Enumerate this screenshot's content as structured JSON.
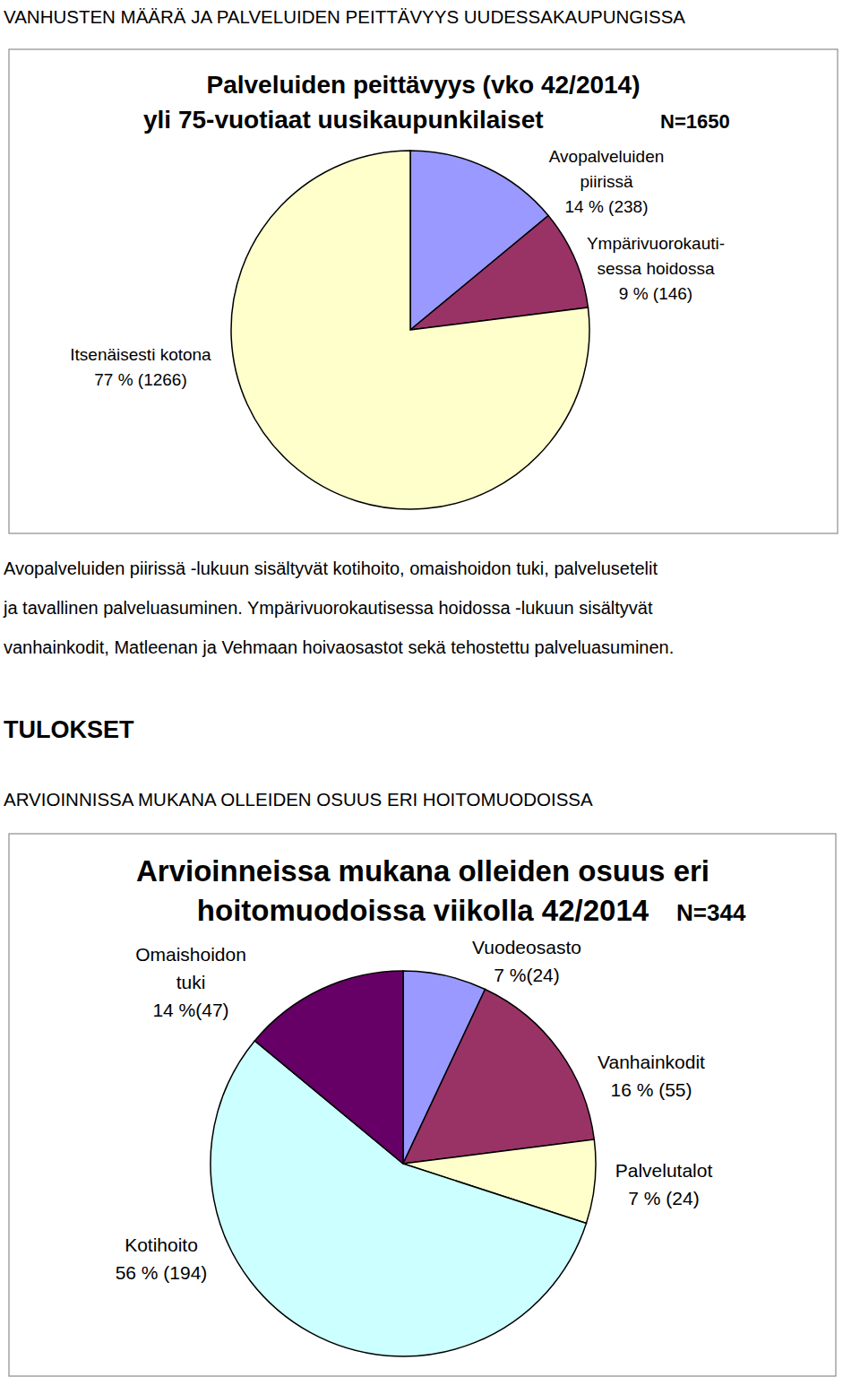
{
  "page": {
    "heading": "VANHUSTEN MÄÄRÄ JA PALVELUIDEN PEITTÄVYYS UUDESSAKAUPUNGISSA",
    "caption": [
      "Avopalveluiden piirissä -lukuun sisältyvät kotihoito, omaishoidon tuki, palvelusetelit",
      "ja tavallinen palveluasuminen. Ympärivuorokautisessa hoidossa -lukuun sisältyvät",
      "vanhainkodit, Matleenan ja Vehmaan hoivaosastot sekä tehostettu palveluasuminen."
    ],
    "results_heading": "TULOKSET",
    "results_subheading": "ARVIOINNISSA MUKANA OLLEIDEN OSUUS ERI HOITOMUODOISSA"
  },
  "chart_data": [
    {
      "type": "pie",
      "title": "Palveluiden peittävyys (vko 42/2014)",
      "subtitle": "yli 75-vuotiaat uusikaupunkilaiset",
      "annotations": [
        "N=1650"
      ],
      "categories": [
        "Avopalveluiden\npiirissä",
        "Ympärivuorokauti-\nsessa hoidossa",
        "Itsenäisesti kotona"
      ],
      "values": [
        14,
        9,
        77
      ],
      "value_labels": [
        "14 % (238)",
        "9 % (146)",
        "77 % (1266)"
      ],
      "colors": [
        "#9999ff",
        "#993366",
        "#ffffcc"
      ],
      "data_labels": true
    },
    {
      "type": "pie",
      "title": "Arvioinneissa mukana olleiden osuus eri\nhoitomuodoissa viikolla 42/2014",
      "annotations": [
        "N=344"
      ],
      "categories": [
        "Vuodeosasto",
        "Vanhainkodit",
        "Palvelutalot",
        "Kotihoito",
        "Omaishoidon\ntuki"
      ],
      "values": [
        7,
        16,
        7,
        56,
        14
      ],
      "value_labels": [
        "7 %(24)",
        "16 % (55)",
        "7 % (24)",
        "56 % (194)",
        "14 %(47)"
      ],
      "colors": [
        "#9999ff",
        "#993366",
        "#ffffcc",
        "#ccffff",
        "#660066"
      ],
      "data_labels": true
    }
  ]
}
